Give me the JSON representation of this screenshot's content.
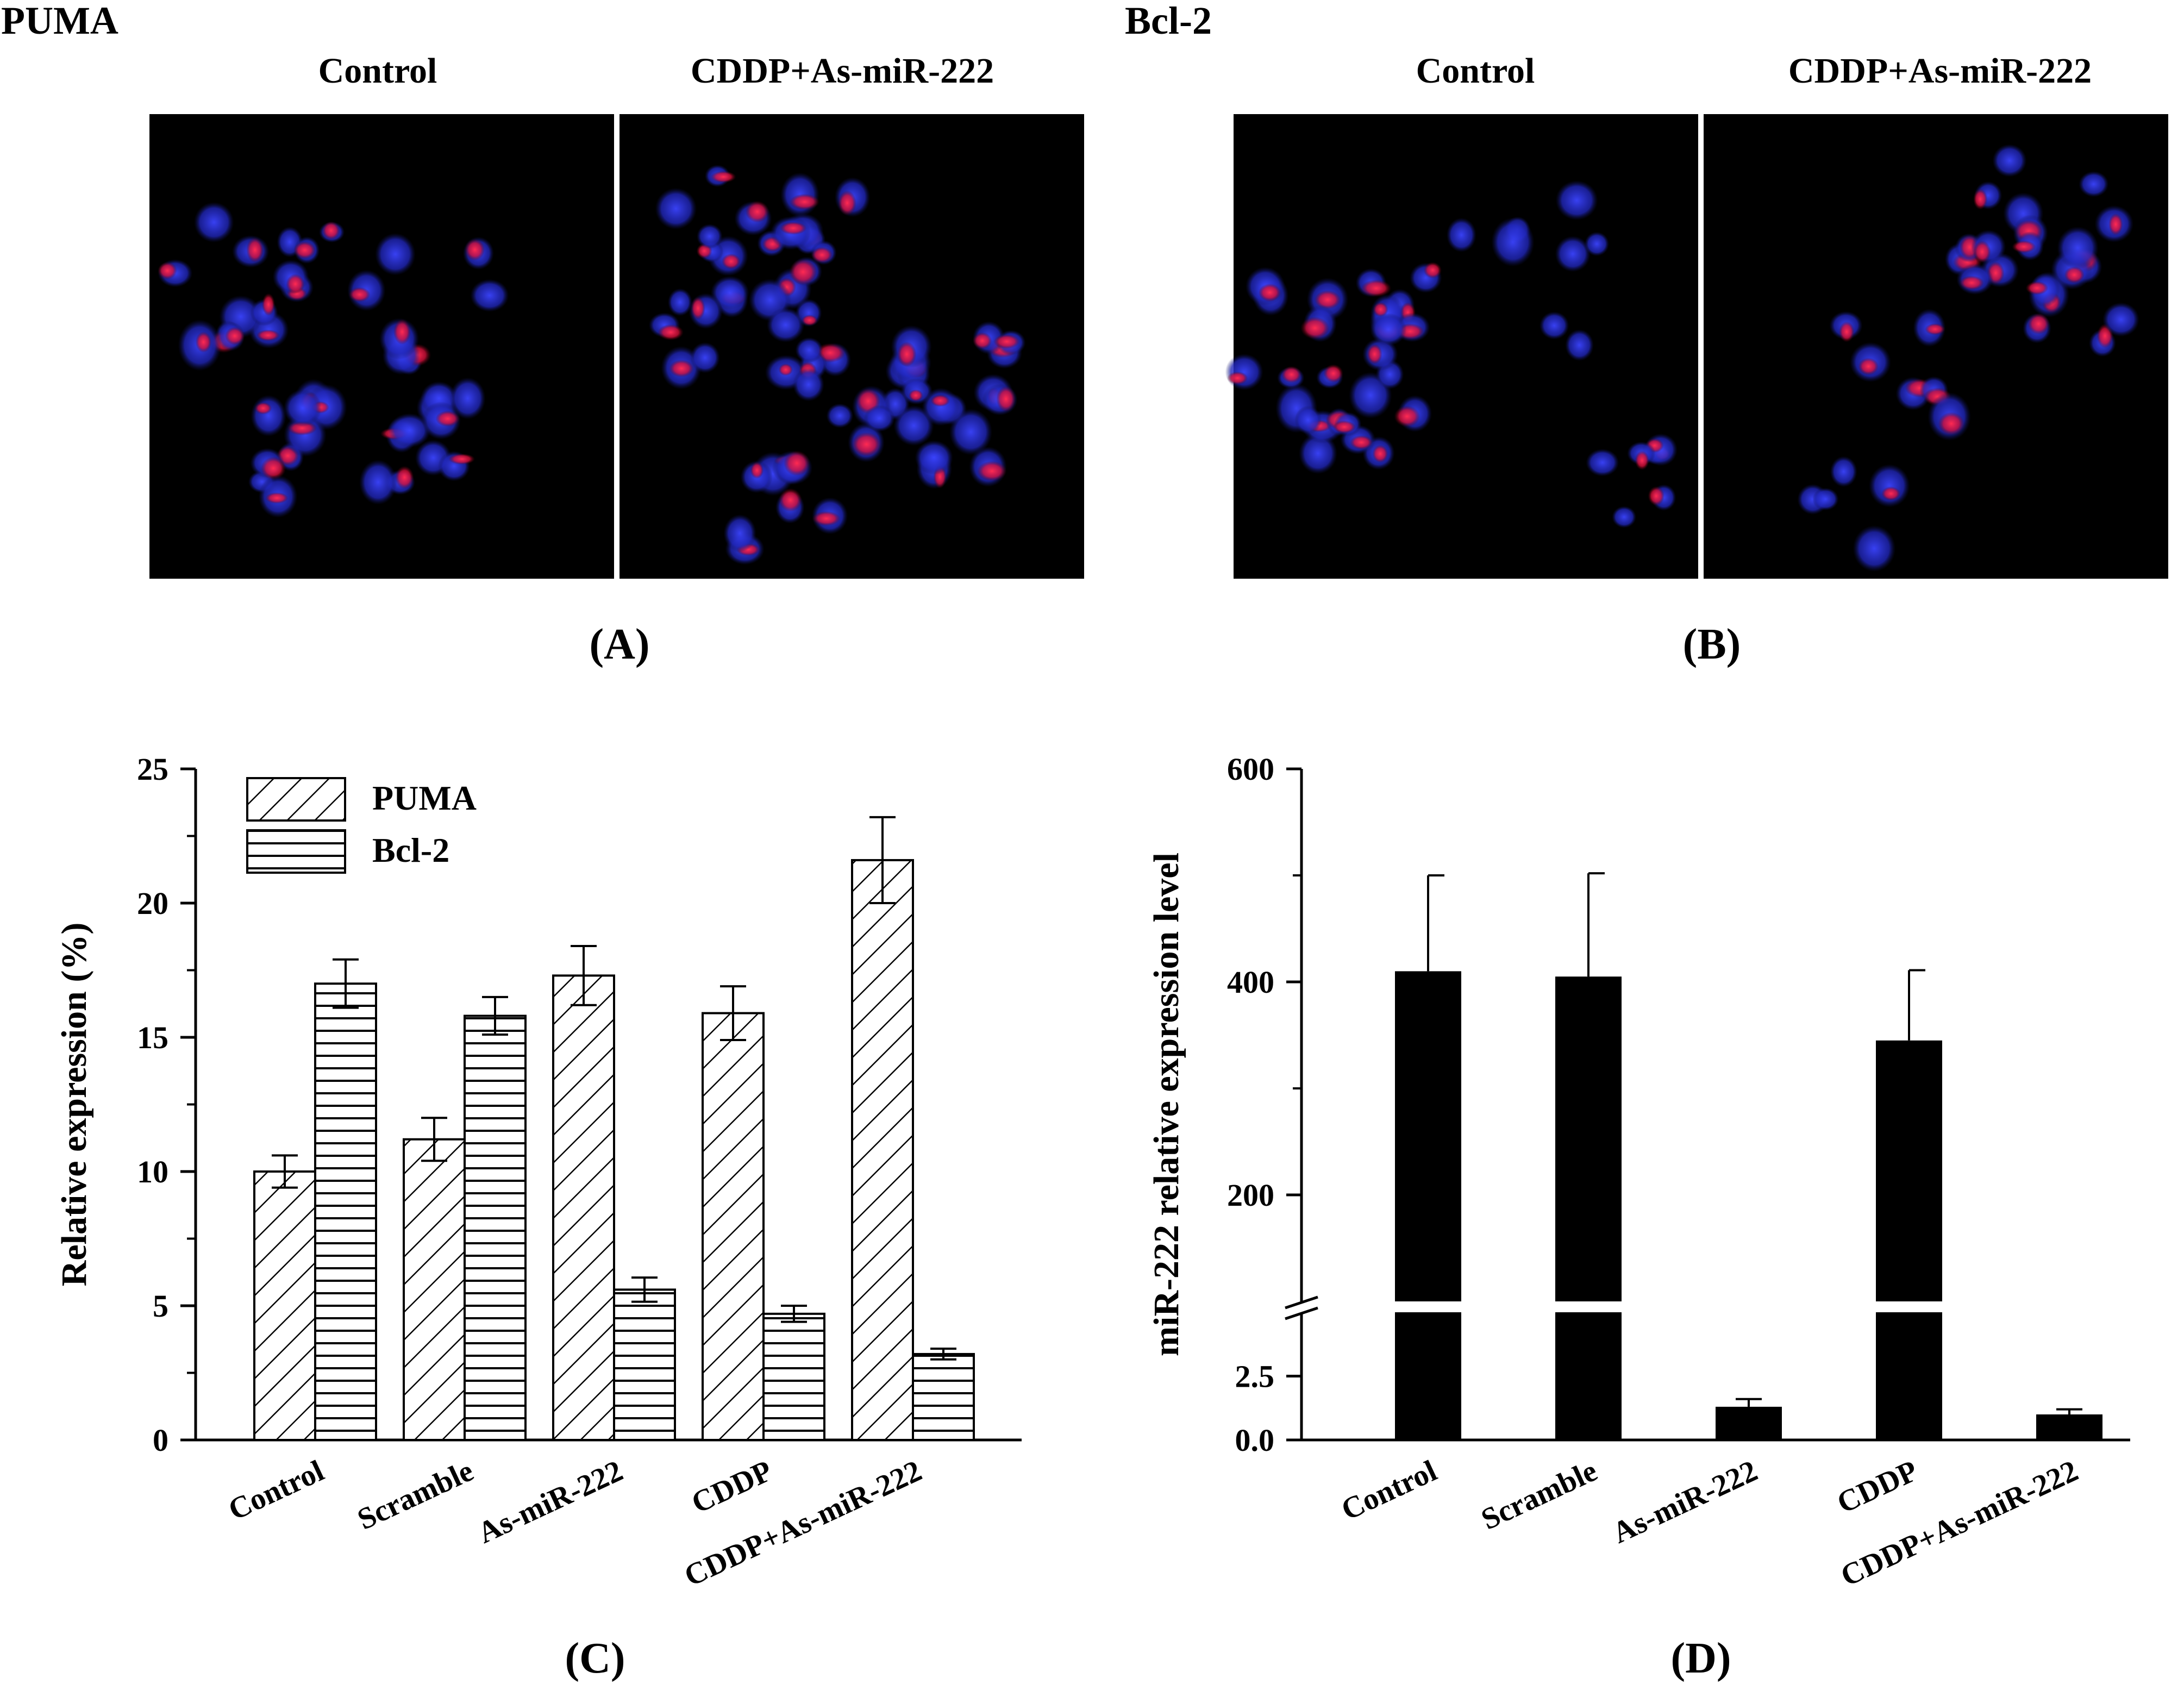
{
  "panel_a": {
    "heading": "PUMA",
    "label": "(A)",
    "image_titles": [
      "Control",
      "CDDP+As-miR-222"
    ]
  },
  "panel_b": {
    "heading": "Bcl-2",
    "label": "(B)",
    "image_titles": [
      "Control",
      "CDDP+As-miR-222"
    ]
  },
  "colors": {
    "background": "#ffffff",
    "micrograph_background": "#000000",
    "nucleus_stain": "#2a2fd8",
    "protein_stain": "#e8102a",
    "bar_fill": "#000000"
  },
  "chart_data": [
    {
      "type": "bar",
      "panel_label": "(C)",
      "ylabel": "Relative expression (%)",
      "ylim": [
        0,
        25
      ],
      "yticks": [
        0,
        5,
        10,
        15,
        20,
        25
      ],
      "categories": [
        "Control",
        "Scramble",
        "As-miR-222",
        "CDDP",
        "CDDP+As-miR-222"
      ],
      "series": [
        {
          "name": "PUMA",
          "pattern": "diagonal-hatch",
          "values": [
            10.0,
            11.2,
            17.3,
            15.9,
            21.6
          ],
          "errors": [
            0.6,
            0.8,
            1.1,
            1.0,
            1.6
          ]
        },
        {
          "name": "Bcl-2",
          "pattern": "horizontal-hatch",
          "values": [
            17.0,
            15.8,
            5.6,
            4.7,
            3.2
          ],
          "errors": [
            0.9,
            0.7,
            0.45,
            0.3,
            0.2
          ]
        }
      ],
      "legend_position": "top-left"
    },
    {
      "type": "bar",
      "panel_label": "(D)",
      "ylabel": "miR-222 relative expression level",
      "broken_axis": true,
      "lower_segment": {
        "ylim": [
          0,
          5
        ],
        "yticks": [
          0.0,
          2.5
        ],
        "tick_labels": [
          "0.0",
          "2.5"
        ]
      },
      "upper_segment": {
        "ylim": [
          100,
          600
        ],
        "yticks": [
          200,
          400,
          600
        ],
        "tick_labels": [
          "200",
          "400",
          "600"
        ]
      },
      "categories": [
        "Control",
        "Scramble",
        "As-miR-222",
        "CDDP",
        "CDDP+As-miR-222"
      ],
      "values": [
        410,
        405,
        1.3,
        345,
        1.0
      ],
      "errors": [
        90,
        97,
        0.3,
        66,
        0.2
      ]
    }
  ]
}
